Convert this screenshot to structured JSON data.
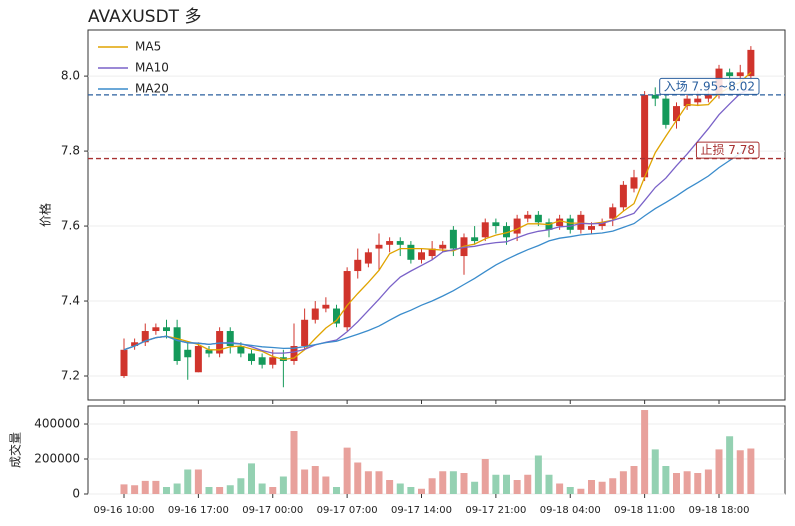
{
  "chart_data": {
    "type": "candlestick",
    "title": "AVAXUSDT  多",
    "ylabel": "价格",
    "categories": [
      "09-16 10:00",
      null,
      null,
      null,
      null,
      null,
      null,
      "09-16 17:00",
      null,
      null,
      null,
      null,
      null,
      null,
      "09-17 00:00",
      null,
      null,
      null,
      null,
      null,
      null,
      "09-17 07:00",
      null,
      null,
      null,
      null,
      null,
      null,
      "09-17 14:00",
      null,
      null,
      null,
      null,
      null,
      null,
      "09-17 21:00",
      null,
      null,
      null,
      null,
      null,
      null,
      "09-18 04:00",
      null,
      null,
      null,
      null,
      null,
      null,
      "09-18 11:00",
      null,
      null,
      null,
      null,
      null,
      null,
      "09-18 18:00",
      null,
      null,
      null
    ],
    "open": [
      7.2,
      7.28,
      7.29,
      7.32,
      7.33,
      7.33,
      7.27,
      7.21,
      7.27,
      7.26,
      7.32,
      7.28,
      7.26,
      7.25,
      7.23,
      7.25,
      7.24,
      7.28,
      7.35,
      7.38,
      7.38,
      7.33,
      7.48,
      7.5,
      7.54,
      7.55,
      7.56,
      7.55,
      7.51,
      7.52,
      7.54,
      7.59,
      7.52,
      7.57,
      7.57,
      7.61,
      7.6,
      7.58,
      7.62,
      7.63,
      7.61,
      7.6,
      7.62,
      7.59,
      7.59,
      7.6,
      7.62,
      7.65,
      7.7,
      7.73,
      7.95,
      7.94,
      7.88,
      7.92,
      7.93,
      7.94,
      7.95,
      8.01,
      8.0,
      8.0
    ],
    "high": [
      7.3,
      7.3,
      7.34,
      7.34,
      7.35,
      7.35,
      7.29,
      7.29,
      7.28,
      7.33,
      7.33,
      7.29,
      7.27,
      7.26,
      7.27,
      7.27,
      7.34,
      7.38,
      7.4,
      7.41,
      7.39,
      7.49,
      7.54,
      7.54,
      7.58,
      7.57,
      7.57,
      7.56,
      7.54,
      7.56,
      7.56,
      7.6,
      7.58,
      7.6,
      7.62,
      7.62,
      7.61,
      7.63,
      7.64,
      7.64,
      7.62,
      7.63,
      7.63,
      7.64,
      7.61,
      7.62,
      7.66,
      7.72,
      7.75,
      7.96,
      7.97,
      7.95,
      7.93,
      7.95,
      7.96,
      7.97,
      8.03,
      8.02,
      8.03,
      8.08
    ],
    "low": [
      7.195,
      7.27,
      7.28,
      7.31,
      7.3,
      7.23,
      7.19,
      7.21,
      7.25,
      7.25,
      7.26,
      7.25,
      7.23,
      7.22,
      7.22,
      7.17,
      7.23,
      7.27,
      7.34,
      7.37,
      7.33,
      7.32,
      7.46,
      7.49,
      7.48,
      7.53,
      7.52,
      7.5,
      7.5,
      7.51,
      7.53,
      7.52,
      7.47,
      7.55,
      7.56,
      7.58,
      7.55,
      7.56,
      7.61,
      7.6,
      7.57,
      7.59,
      7.58,
      7.58,
      7.58,
      7.59,
      7.6,
      7.64,
      7.69,
      7.72,
      7.92,
      7.86,
      7.86,
      7.91,
      7.92,
      7.93,
      7.94,
      7.96,
      7.98,
      7.99
    ],
    "close": [
      7.27,
      7.29,
      7.32,
      7.33,
      7.32,
      7.24,
      7.25,
      7.28,
      7.26,
      7.32,
      7.28,
      7.26,
      7.24,
      7.23,
      7.25,
      7.24,
      7.28,
      7.35,
      7.38,
      7.39,
      7.34,
      7.48,
      7.51,
      7.53,
      7.55,
      7.56,
      7.55,
      7.51,
      7.53,
      7.54,
      7.55,
      7.54,
      7.57,
      7.56,
      7.61,
      7.6,
      7.57,
      7.62,
      7.63,
      7.61,
      7.59,
      7.62,
      7.59,
      7.63,
      7.6,
      7.61,
      7.65,
      7.71,
      7.73,
      7.95,
      7.94,
      7.87,
      7.92,
      7.94,
      7.94,
      7.95,
      8.02,
      8.0,
      8.01,
      8.07
    ],
    "up_color": "#d0342c",
    "down_color": "#14995a",
    "ylim": [
      7.136,
      8.123
    ],
    "yticks": [
      7.2,
      7.4,
      7.6,
      7.8,
      {
        "value": 8,
        "label": "8.0"
      }
    ],
    "grid": true,
    "ma": [
      {
        "name": "MA5",
        "window": 5,
        "color": "#e0a400"
      },
      {
        "name": "MA10",
        "window": 10,
        "color": "#7a62c8"
      },
      {
        "name": "MA20",
        "window": 20,
        "color": "#3a8ccc"
      }
    ],
    "legend": "upper left",
    "levels": [
      {
        "value": 7.95,
        "label": "入场 7.95~8.02",
        "color": "#2a5f9e"
      },
      {
        "value": 7.78,
        "label": "止损 7.78",
        "color": "#a83232"
      }
    ],
    "volume": {
      "ylabel": "成交量",
      "values": [
        55000,
        50000,
        75000,
        75000,
        40000,
        60000,
        140000,
        140000,
        40000,
        40000,
        50000,
        90000,
        175000,
        60000,
        40000,
        100000,
        360000,
        140000,
        160000,
        100000,
        40000,
        265000,
        180000,
        130000,
        130000,
        80000,
        60000,
        40000,
        30000,
        90000,
        130000,
        130000,
        120000,
        70000,
        200000,
        110000,
        110000,
        80000,
        110000,
        220000,
        110000,
        60000,
        40000,
        30000,
        80000,
        70000,
        90000,
        130000,
        160000,
        480000,
        255000,
        160000,
        120000,
        130000,
        120000,
        140000,
        255000,
        330000,
        250000,
        260000
      ],
      "ylim": [
        0,
        503000
      ],
      "yticks": [
        0,
        200000,
        400000
      ],
      "up_color": "#e8a19c",
      "down_color": "#94d1b2"
    }
  }
}
